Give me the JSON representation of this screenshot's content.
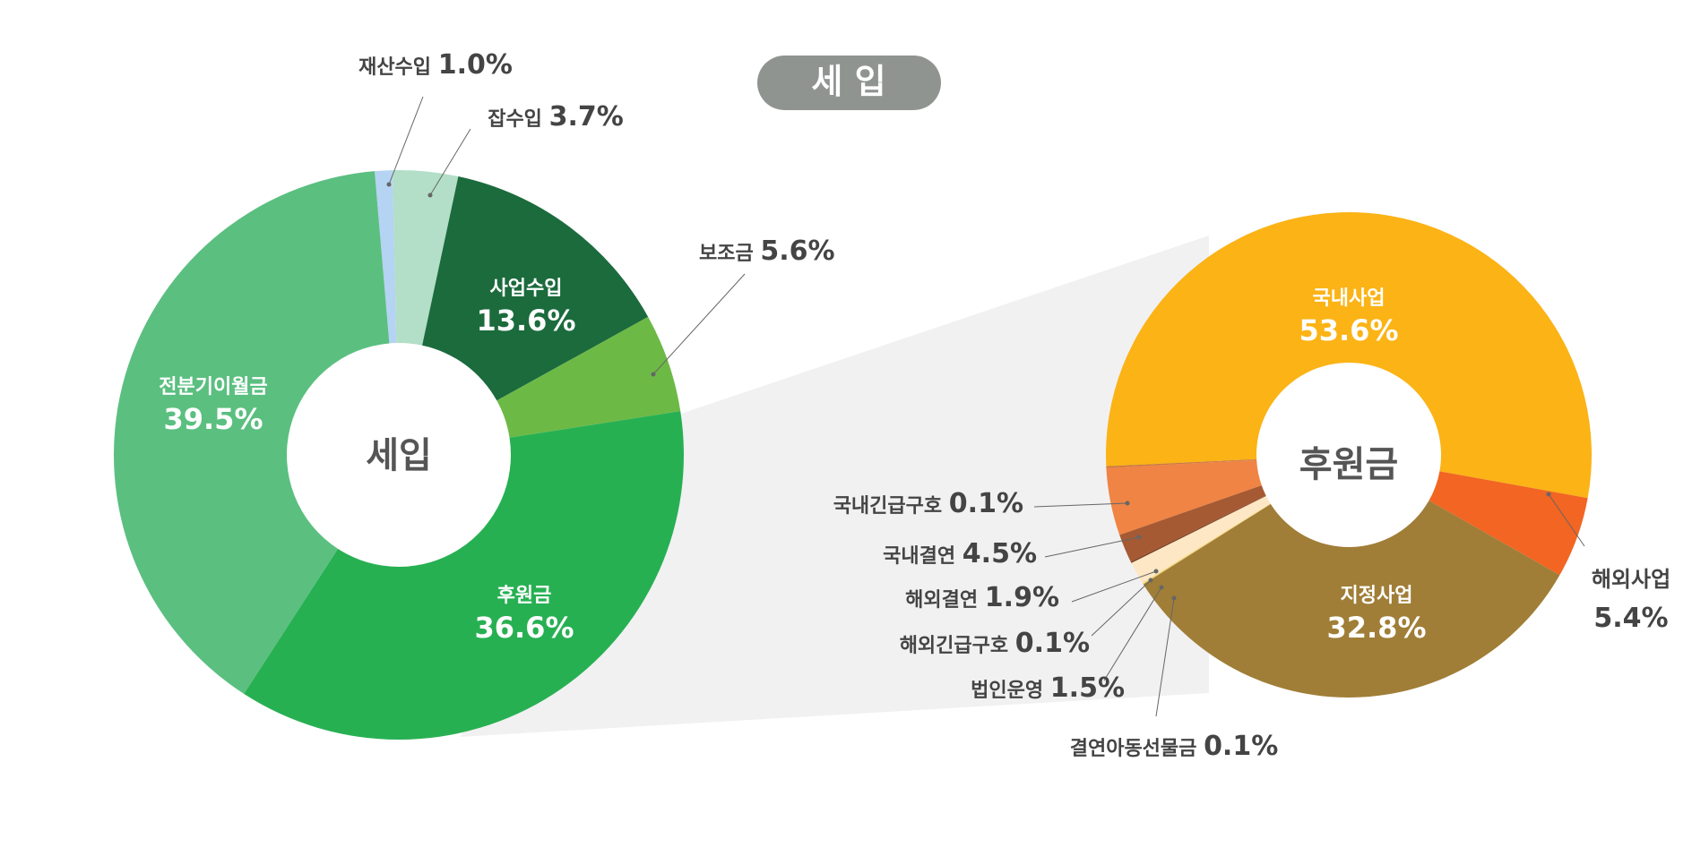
{
  "title": "세 입",
  "chart_data": [
    {
      "type": "pie",
      "donut": true,
      "center_label": "세입",
      "slices": [
        {
          "label": "재산수입",
          "value": 1.0,
          "value_label": "1.0%",
          "color": "#b5d3f2",
          "label_outside": true
        },
        {
          "label": "잡수입",
          "value": 3.7,
          "value_label": "3.7%",
          "color": "#b3dec7",
          "label_outside": true
        },
        {
          "label": "사업수입",
          "value": 13.6,
          "value_label": "13.6%",
          "color": "#1b6b3d",
          "label_outside": false
        },
        {
          "label": "보조금",
          "value": 5.6,
          "value_label": "5.6%",
          "color": "#6db946",
          "label_outside": true
        },
        {
          "label": "후원금",
          "value": 36.6,
          "value_label": "36.6%",
          "color": "#27b052",
          "label_outside": false
        },
        {
          "label": "전분기이월금",
          "value": 39.5,
          "value_label": "39.5%",
          "color": "#5bbf80",
          "label_outside": false
        }
      ]
    },
    {
      "type": "pie",
      "donut": true,
      "center_label": "후원금",
      "slices": [
        {
          "label": "국내사업",
          "value": 53.6,
          "value_label": "53.6%",
          "color": "#fbb316",
          "label_outside": false
        },
        {
          "label": "해외사업",
          "value": 5.4,
          "value_label": "5.4%",
          "color": "#f26522",
          "label_outside": true
        },
        {
          "label": "지정사업",
          "value": 32.8,
          "value_label": "32.8%",
          "color": "#a07e37",
          "label_outside": false
        },
        {
          "label": "결연아동선물금",
          "value": 0.1,
          "value_label": "0.1%",
          "color": "#f3d77a",
          "label_outside": true
        },
        {
          "label": "법인운영",
          "value": 1.5,
          "value_label": "1.5%",
          "color": "#fde7c4",
          "label_outside": true
        },
        {
          "label": "해외긴급구호",
          "value": 0.1,
          "value_label": "0.1%",
          "color": "#7a3f22",
          "label_outside": true
        },
        {
          "label": "해외결연",
          "value": 1.9,
          "value_label": "1.9%",
          "color": "#a55a33",
          "label_outside": true
        },
        {
          "label": "국내결연",
          "value": 4.5,
          "value_label": "4.5%",
          "color": "#ef8444",
          "label_outside": true
        },
        {
          "label": "국내긴급구호",
          "value": 0.1,
          "value_label": "0.1%",
          "color": "#c9773a",
          "label_outside": true
        }
      ]
    }
  ],
  "colors": {
    "title_pill": "#8f9491",
    "connector": "#f1f1f2",
    "leader": "#666666",
    "outside_text": "#444444",
    "inside_text": "#ffffff",
    "center_text": "#555555"
  }
}
